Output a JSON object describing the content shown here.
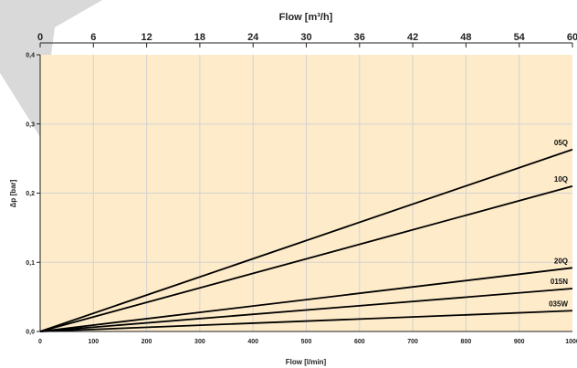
{
  "chart_data": {
    "type": "line",
    "title": "",
    "xlabel": "Flow [l/min]",
    "ylabel": "Δp [bar]",
    "x2label": "Flow [m³/h]",
    "xlim": [
      0,
      1000
    ],
    "ylim": [
      0,
      0.4
    ],
    "x2lim": [
      0,
      60
    ],
    "x_ticks": [
      "0",
      "100",
      "200",
      "300",
      "400",
      "500",
      "600",
      "700",
      "800",
      "900",
      "1000"
    ],
    "x2_ticks": [
      "0",
      "6",
      "12",
      "18",
      "24",
      "30",
      "36",
      "42",
      "48",
      "54",
      "60"
    ],
    "y_ticks": [
      "0,0",
      "0,1",
      "0,2",
      "0,3",
      "0,4"
    ],
    "grid": true,
    "legend": "inline labels at right end of lines",
    "background": "#fdebc9",
    "line_color": "#000000",
    "series": [
      {
        "name": "05Q",
        "x": [
          0,
          1000
        ],
        "y": [
          0,
          0.263
        ]
      },
      {
        "name": "10Q",
        "x": [
          0,
          1000
        ],
        "y": [
          0,
          0.21
        ]
      },
      {
        "name": "20Q",
        "x": [
          0,
          1000
        ],
        "y": [
          0,
          0.092
        ]
      },
      {
        "name": "015N",
        "x": [
          0,
          1000
        ],
        "y": [
          0,
          0.062
        ]
      },
      {
        "name": "035W",
        "x": [
          0,
          1000
        ],
        "y": [
          0,
          0.03
        ]
      }
    ]
  }
}
